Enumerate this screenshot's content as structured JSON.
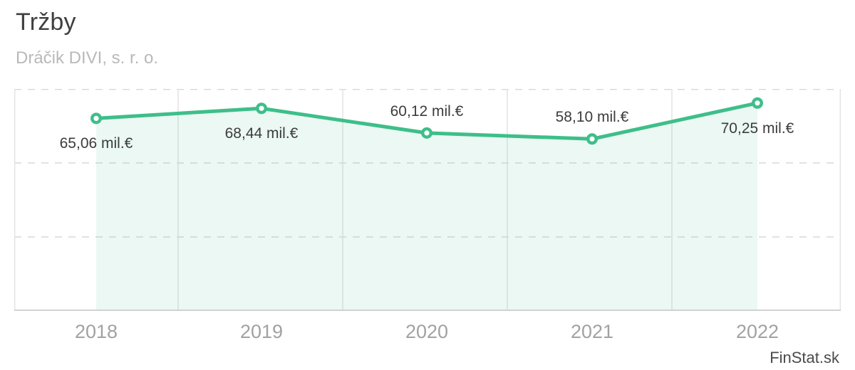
{
  "header": {
    "title": "Tržby",
    "subtitle": "Dráčik DIVI, s. r. o."
  },
  "watermark": "FinStat.sk",
  "colors": {
    "line": "#3ebe8a",
    "marker_fill": "#ffffff",
    "area_fill": "#3ebe8a",
    "area_opacity": 0.1,
    "grid_solid": "#e2e2e2",
    "grid_dashed": "#d9d9d9",
    "axis_bottom": "#d2d2d2",
    "title_text": "#3f3f3f",
    "subtitle_text": "#b9b9b9",
    "point_label_text": "#3c3c3c",
    "x_label_text": "#a2a2a2",
    "watermark_text": "#4b4b4b"
  },
  "chart_data": {
    "type": "line",
    "title": "Tržby",
    "subtitle": "Dráčik DIVI, s. r. o.",
    "unit": "mil.€",
    "categories": [
      "2018",
      "2019",
      "2020",
      "2021",
      "2022"
    ],
    "series": [
      {
        "name": "Tržby",
        "values": [
          65.06,
          68.44,
          60.12,
          58.1,
          70.25
        ]
      }
    ],
    "point_labels": [
      "65,06 mil.€",
      "68,44 mil.€",
      "60,12 mil.€",
      "58,10 mil.€",
      "70,25 mil.€"
    ],
    "label_positions": [
      "below",
      "below",
      "above",
      "above",
      "below"
    ],
    "ylim": [
      0,
      75
    ],
    "y_gridline_values": [
      25,
      50,
      75
    ],
    "grid": {
      "horizontal": "dashed",
      "vertical": "solid",
      "area_fill": true
    },
    "legend": "none",
    "xlabel": "",
    "ylabel": ""
  }
}
